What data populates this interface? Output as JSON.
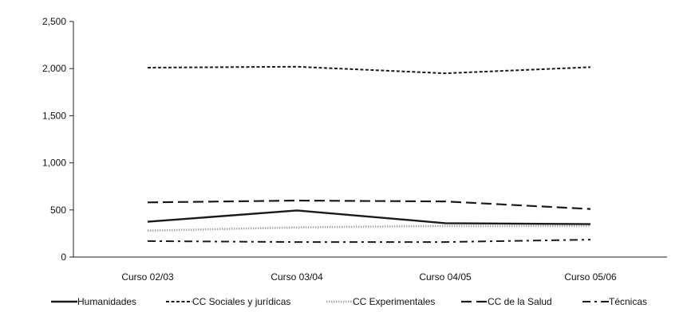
{
  "chart_data": {
    "type": "line",
    "categories": [
      "Curso 02/03",
      "Curso 03/04",
      "Curso 04/05",
      "Curso 05/06"
    ],
    "ylim": [
      0,
      2500
    ],
    "yticks": [
      0,
      500,
      1000,
      1500,
      2000,
      2500
    ],
    "ytick_labels": [
      "0",
      "500",
      "1,000",
      "1,500",
      "2,000",
      "2,500"
    ],
    "grid": false,
    "legend_position": "bottom",
    "series": [
      {
        "name": "Humanidades",
        "values": [
          375,
          495,
          360,
          350
        ],
        "color": "#1a1a1a",
        "style": "solid"
      },
      {
        "name": "CC Sociales y jurídicas",
        "values": [
          2010,
          2020,
          1950,
          2015
        ],
        "color": "#1a1a1a",
        "style": "dotted"
      },
      {
        "name": "CC Experimentales",
        "values": [
          280,
          315,
          330,
          330
        ],
        "color": "#9a9a9a",
        "style": "dotted-light"
      },
      {
        "name": "CC de la Salud",
        "values": [
          580,
          600,
          590,
          510
        ],
        "color": "#1a1a1a",
        "style": "dashed"
      },
      {
        "name": "Técnicas",
        "values": [
          170,
          160,
          160,
          185
        ],
        "color": "#1a1a1a",
        "style": "dashdot"
      }
    ]
  }
}
